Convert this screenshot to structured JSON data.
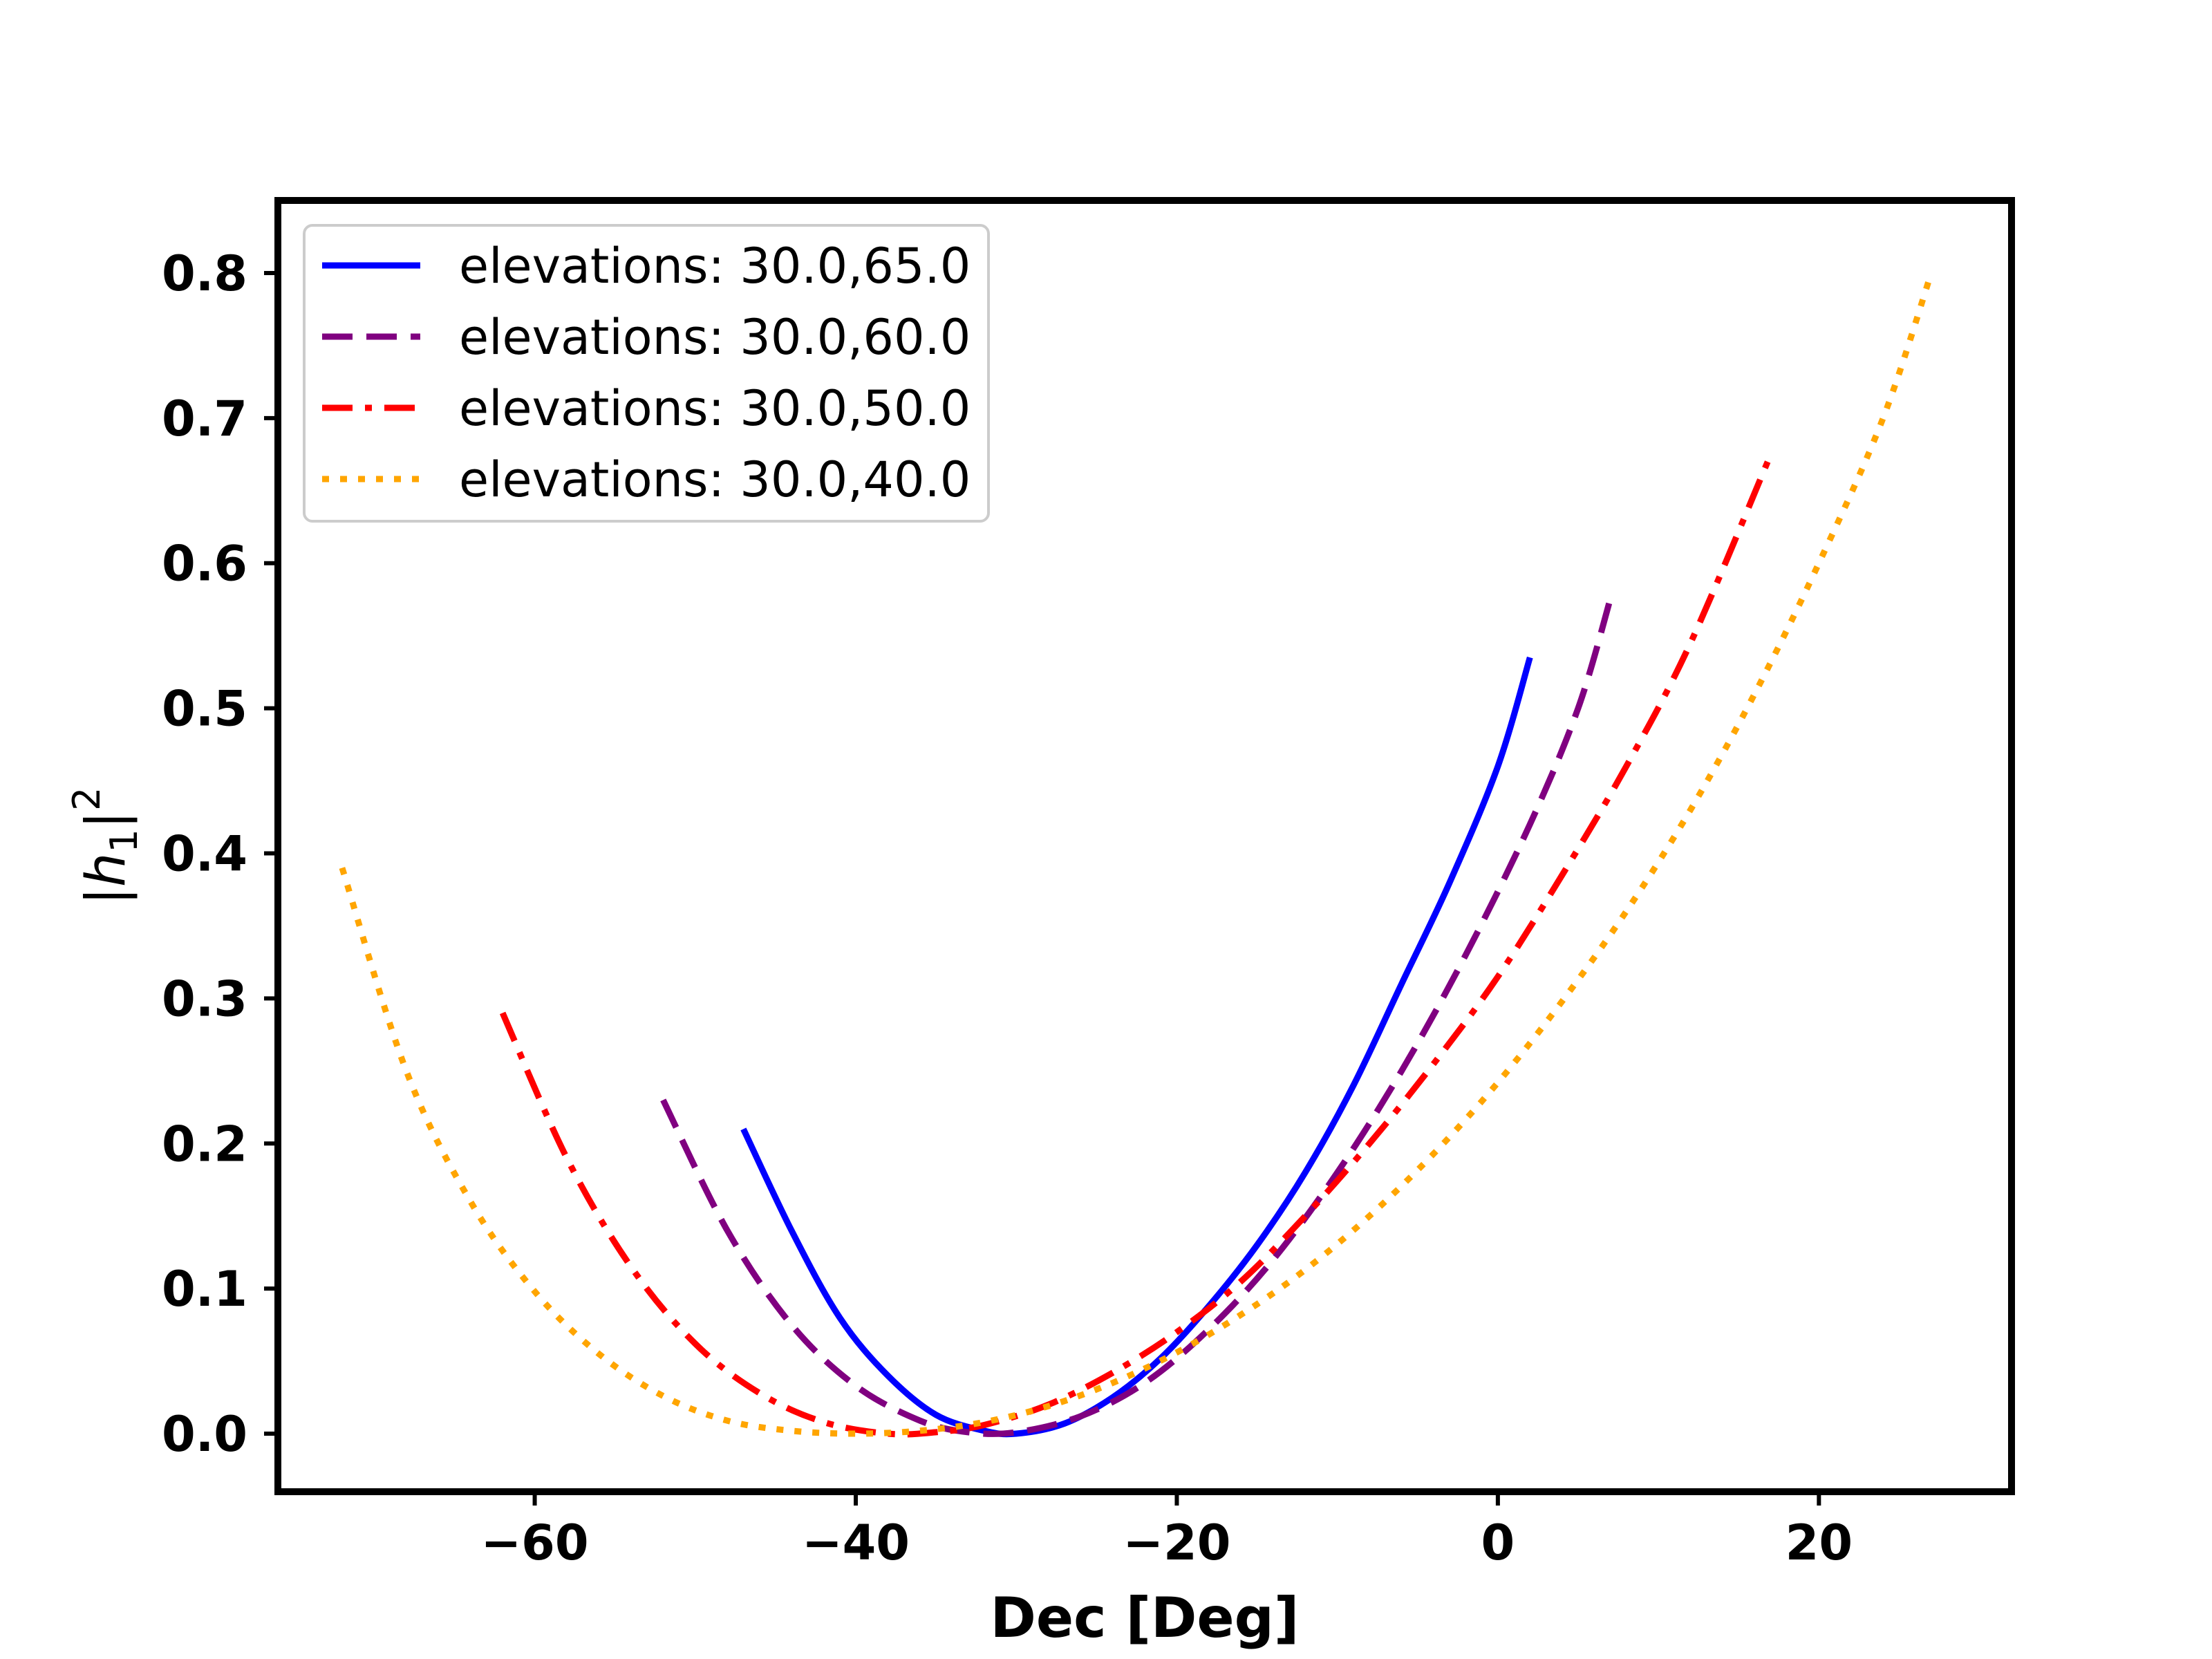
{
  "chart_data": {
    "type": "line",
    "title": "",
    "xlabel": "Dec [Deg]",
    "ylabel": {
      "base": "|h",
      "subscript": "1",
      "close": "|",
      "superscript": "2"
    },
    "xlim": [
      -76,
      32
    ],
    "ylim": [
      -0.04,
      0.85
    ],
    "xticks": [
      -60,
      -40,
      -20,
      0,
      20
    ],
    "xtick_labels": [
      "−60",
      "−40",
      "−20",
      "0",
      "20"
    ],
    "yticks": [
      0.0,
      0.1,
      0.2,
      0.3,
      0.4,
      0.5,
      0.6,
      0.7,
      0.8
    ],
    "ytick_labels": [
      "0.0",
      "0.1",
      "0.2",
      "0.3",
      "0.4",
      "0.5",
      "0.6",
      "0.7",
      "0.8"
    ],
    "grid": false,
    "legend_position": "upper-left",
    "series": [
      {
        "name": "elevations: 30.0,65.0",
        "color": "#0000ff",
        "style": "solid",
        "x": [
          -47,
          -44,
          -41,
          -38,
          -35,
          -32,
          -30,
          -27,
          -24,
          -21,
          -18,
          -15,
          -12,
          -9,
          -6,
          -3,
          0,
          2
        ],
        "y": [
          0.21,
          0.14,
          0.08,
          0.04,
          0.013,
          0.002,
          0.0,
          0.007,
          0.025,
          0.052,
          0.088,
          0.13,
          0.18,
          0.24,
          0.31,
          0.38,
          0.46,
          0.535
        ]
      },
      {
        "name": "elevations: 30.0,60.0",
        "color": "#800080",
        "style": "dashed",
        "x": [
          -52,
          -48,
          -44,
          -40,
          -36,
          -33,
          -30,
          -26,
          -22,
          -18,
          -14,
          -10,
          -6,
          -2,
          2,
          5,
          7
        ],
        "y": [
          0.23,
          0.14,
          0.075,
          0.033,
          0.009,
          0.001,
          0.001,
          0.012,
          0.035,
          0.072,
          0.12,
          0.18,
          0.25,
          0.33,
          0.42,
          0.5,
          0.575
        ]
      },
      {
        "name": "elevations: 30.0,50.0",
        "color": "#ff0000",
        "style": "dashdot",
        "x": [
          -62,
          -58,
          -54,
          -50,
          -46,
          -42,
          -38,
          -35,
          -32,
          -28,
          -24,
          -20,
          -16,
          -12,
          -8,
          -4,
          0,
          4,
          8,
          12,
          17
        ],
        "y": [
          0.29,
          0.19,
          0.115,
          0.062,
          0.028,
          0.008,
          0.0,
          0.001,
          0.006,
          0.02,
          0.042,
          0.07,
          0.105,
          0.15,
          0.2,
          0.255,
          0.315,
          0.385,
          0.46,
          0.545,
          0.675
        ]
      },
      {
        "name": "elevations: 30.0,40.0",
        "color": "#ffa500",
        "style": "dotted",
        "x": [
          -72,
          -68,
          -64,
          -60,
          -56,
          -52,
          -48,
          -44,
          -40,
          -36,
          -32,
          -28,
          -24,
          -20,
          -16,
          -12,
          -8,
          -4,
          0,
          4,
          8,
          12,
          16,
          20,
          24,
          27
        ],
        "y": [
          0.39,
          0.25,
          0.16,
          0.098,
          0.055,
          0.026,
          0.009,
          0.002,
          0.0,
          0.002,
          0.008,
          0.019,
          0.035,
          0.056,
          0.082,
          0.113,
          0.15,
          0.193,
          0.242,
          0.298,
          0.36,
          0.43,
          0.51,
          0.6,
          0.7,
          0.8
        ]
      }
    ]
  }
}
